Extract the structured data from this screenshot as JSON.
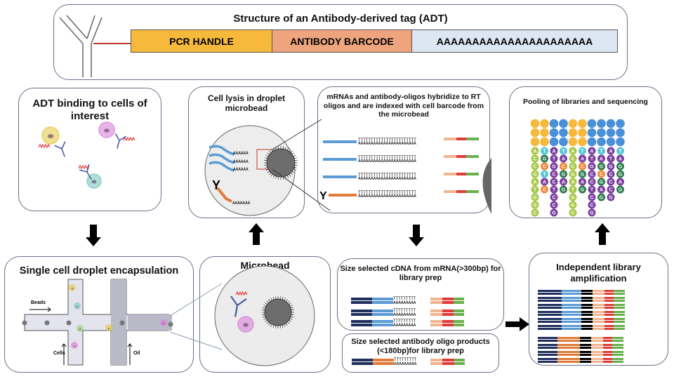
{
  "top": {
    "title": "Structure of an Antibody-derived tag (ADT)",
    "segments": [
      {
        "label": "PCR HANDLE",
        "color": "#f6b93b"
      },
      {
        "label": "ANTIBODY BARCODE",
        "color": "#eea57e"
      },
      {
        "label": "AAAAAAAAAAAAAAAAAAAAAA",
        "color": "#dde7f4"
      }
    ]
  },
  "panels": {
    "adt_binding": "ADT binding to cells of interest",
    "cell_lysis": "Cell lysis in droplet microbead",
    "hybridize": "mRNAs and antibody-oligos hybridize to RT oligos and are indexed with cell barcode from the microbead",
    "pooling": "Pooling of libraries and sequencing",
    "encapsulation": "Single cell droplet encapsulation",
    "microbead": "Microbead",
    "cdna": "Size selected cDNA from mRNA(>300bp) for library prep",
    "antibody_oligo": "Size selected antibody oligo products (<180bp)for library prep",
    "amplification": "Independent library amplification"
  },
  "channel_labels": {
    "beads": "Beads",
    "cells": "Cells",
    "oil": "Oil"
  },
  "sequencing_columns": [
    "ACCGATGGC",
    "TGCTAC",
    "ATGCCTCCG",
    "TACGAG",
    "ACCGATGGC",
    "TACGAG",
    "ATGCCTCCG",
    "TAGCGAG",
    "ATGCCCG",
    "TAGGAG"
  ],
  "colors": {
    "red_oligo": "#e03b3b",
    "green_oligo": "#6ab04c",
    "peach": "#f2b48f",
    "blue_mrna": "#5b9bd5",
    "navy": "#1f2f5e",
    "orange_ab": "#e07b39"
  }
}
